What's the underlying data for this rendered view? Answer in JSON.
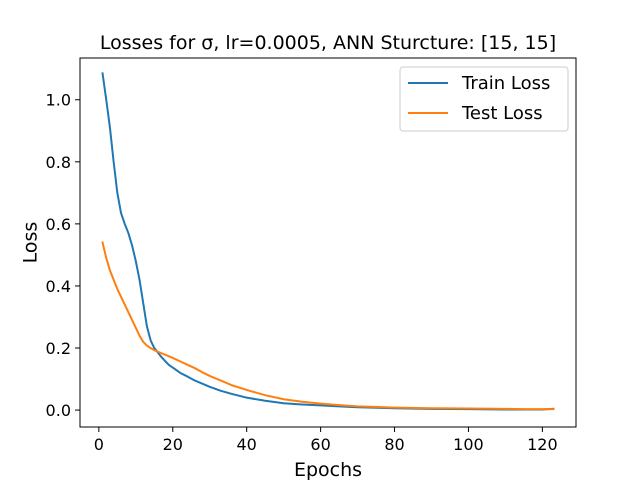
{
  "chart_data": {
    "type": "line",
    "title": "Losses for σ, lr=0.0005, ANN Sturcture: [15, 15]",
    "xlabel": "Epochs",
    "ylabel": "Loss",
    "xlim": [
      -5.1,
      129.1
    ],
    "ylim": [
      -0.0545,
      1.1345
    ],
    "xticks": [
      0,
      20,
      40,
      60,
      80,
      100,
      120
    ],
    "yticks": [
      0.0,
      0.2,
      0.4,
      0.6,
      0.8,
      1.0
    ],
    "ytick_labels": [
      "0.0",
      "0.2",
      "0.4",
      "0.6",
      "0.8",
      "1.0"
    ],
    "grid": false,
    "legend_position": "top-right",
    "series": [
      {
        "name": "Train Loss",
        "color": "#1f77b4",
        "x": [
          1,
          2,
          3,
          4,
          5,
          6,
          7,
          8,
          9,
          10,
          11,
          12,
          13,
          14,
          15,
          16,
          17,
          18,
          19,
          20,
          22,
          24,
          26,
          28,
          30,
          33,
          36,
          40,
          45,
          50,
          55,
          60,
          65,
          70,
          80,
          90,
          100,
          110,
          115,
          120,
          123
        ],
        "y": [
          1.085,
          1.0,
          0.91,
          0.8,
          0.7,
          0.635,
          0.6,
          0.57,
          0.53,
          0.48,
          0.42,
          0.345,
          0.27,
          0.225,
          0.2,
          0.185,
          0.17,
          0.157,
          0.145,
          0.137,
          0.12,
          0.108,
          0.095,
          0.085,
          0.075,
          0.062,
          0.052,
          0.04,
          0.03,
          0.022,
          0.018,
          0.015,
          0.012,
          0.009,
          0.006,
          0.004,
          0.003,
          0.002,
          0.002,
          0.002,
          0.004
        ]
      },
      {
        "name": "Test Loss",
        "color": "#ff7f0e",
        "x": [
          1,
          2,
          3,
          4,
          5,
          6,
          7,
          8,
          9,
          10,
          11,
          12,
          13,
          14,
          15,
          16,
          18,
          20,
          22,
          24,
          26,
          28,
          30,
          33,
          36,
          40,
          45,
          50,
          55,
          60,
          65,
          70,
          80,
          90,
          100,
          110,
          115,
          120,
          123
        ],
        "y": [
          0.54,
          0.49,
          0.45,
          0.42,
          0.39,
          0.365,
          0.34,
          0.315,
          0.29,
          0.265,
          0.24,
          0.22,
          0.208,
          0.2,
          0.193,
          0.188,
          0.178,
          0.168,
          0.157,
          0.146,
          0.135,
          0.122,
          0.11,
          0.095,
          0.08,
          0.065,
          0.048,
          0.035,
          0.027,
          0.021,
          0.016,
          0.012,
          0.008,
          0.006,
          0.005,
          0.004,
          0.003,
          0.003,
          0.003
        ]
      }
    ]
  }
}
